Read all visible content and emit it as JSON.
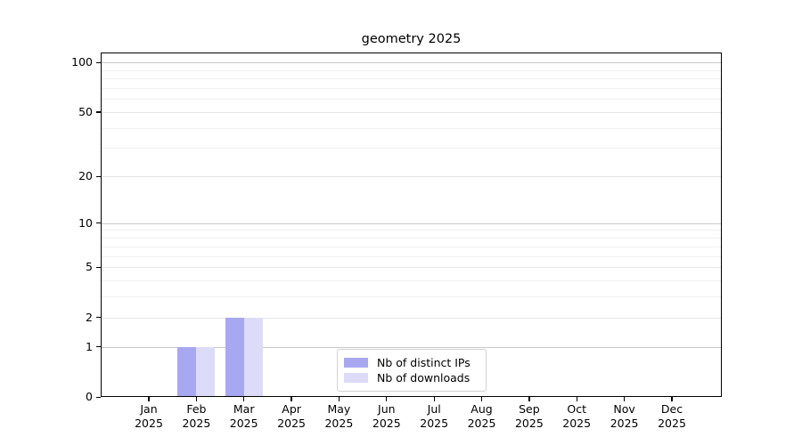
{
  "figure": {
    "title": "geometry 2025",
    "background": "#ffffff"
  },
  "chart_data": {
    "type": "bar",
    "title": "geometry 2025",
    "x_categories": [
      "Jan",
      "Feb",
      "Mar",
      "Apr",
      "May",
      "Jun",
      "Jul",
      "Aug",
      "Sep",
      "Oct",
      "Nov",
      "Dec"
    ],
    "x_year": "2025",
    "series": [
      {
        "name": "Nb of distinct IPs",
        "color": "#a8a8f2",
        "values": [
          0,
          1,
          2,
          0,
          0,
          0,
          0,
          0,
          0,
          0,
          0,
          0
        ]
      },
      {
        "name": "Nb of downloads",
        "color": "#dcdcf8",
        "values": [
          0,
          1,
          2,
          0,
          0,
          0,
          0,
          0,
          0,
          0,
          0,
          0
        ]
      }
    ],
    "yscale": "log1p",
    "ylim": [
      0,
      100
    ],
    "y_major_ticks": [
      0,
      1,
      2,
      5,
      10,
      20,
      50,
      100
    ],
    "y_decade_ticks": [
      1,
      10,
      100
    ],
    "y_minor_gridlines": [
      3,
      4,
      6,
      7,
      8,
      9,
      30,
      40,
      60,
      70,
      80,
      90
    ],
    "grid": true,
    "legend_position": "lower center"
  },
  "legend": {
    "entries": [
      {
        "label": "Nb of distinct IPs",
        "color": "#a8a8f2"
      },
      {
        "label": "Nb of downloads",
        "color": "#dcdcf8"
      }
    ]
  },
  "colors": {
    "spine": "#000000",
    "grid_decade": "#c8c8c8",
    "grid_major": "#e5e5e5",
    "grid_minor": "#f0f0f0",
    "tick_label": "#000000",
    "legend_border": "#d2d2d2"
  }
}
